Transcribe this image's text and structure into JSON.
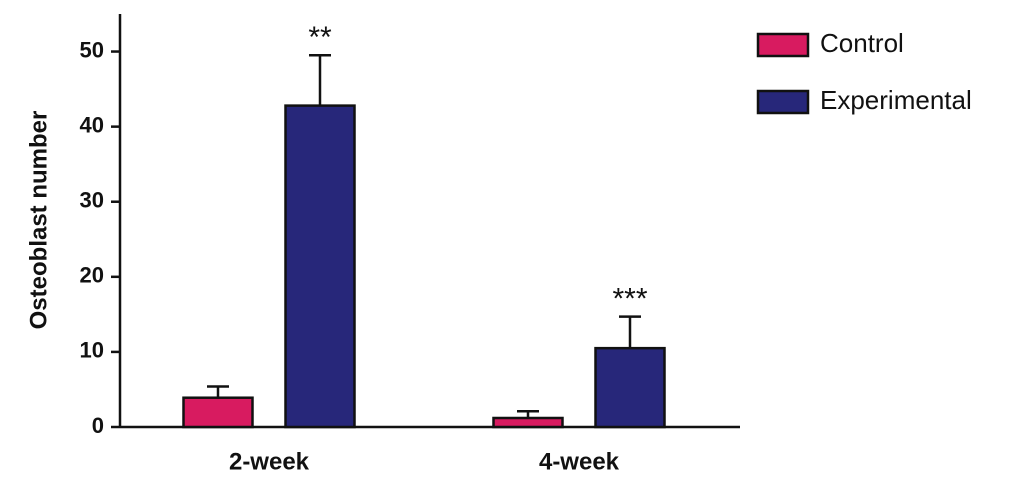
{
  "chart_data": {
    "type": "bar",
    "y_label": "Osteoblast number",
    "categories": [
      "2-week",
      "4-week"
    ],
    "series": [
      {
        "name": "Control",
        "color": "#d81b60",
        "values": [
          3.9,
          1.2
        ],
        "errors": [
          1.5,
          0.9
        ]
      },
      {
        "name": "Experimental",
        "color": "#27277a",
        "values": [
          42.8,
          10.5
        ],
        "errors": [
          6.7,
          4.2
        ],
        "significance": [
          "**",
          "***"
        ]
      }
    ],
    "ylim": [
      0,
      55
    ],
    "yticks": [
      0,
      10,
      20,
      30,
      40,
      50
    ],
    "grid": false,
    "legend": "right"
  }
}
